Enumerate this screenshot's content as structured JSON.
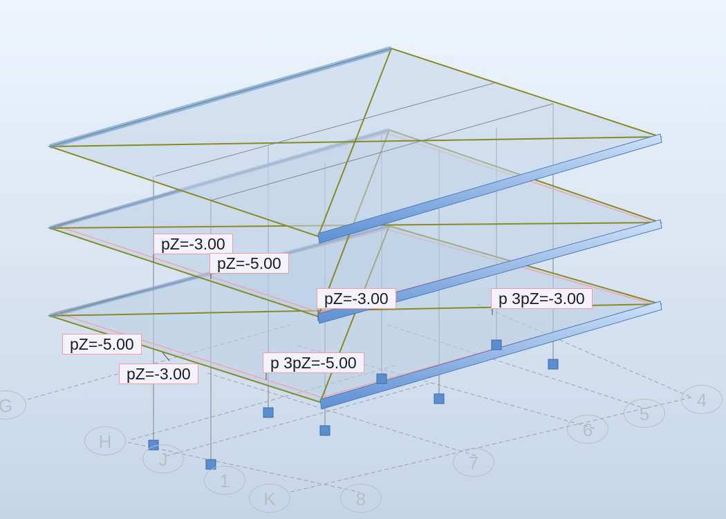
{
  "load_labels": [
    "pZ=-3.00",
    "pZ=-5.00",
    "pZ=-3.00",
    "p 3pZ=-3.00",
    "pZ=-5.00",
    "pZ=-3.00",
    "p 3pZ=-5.00"
  ],
  "grid_labels": [
    "G",
    "H",
    "J",
    "1",
    "K",
    "8",
    "7",
    "6",
    "5",
    "4"
  ],
  "colors": {
    "background_top": "#eef4fb",
    "background_bottom": "#c5d6e9",
    "slab_edge": "#8a8a22",
    "slab_fill": "#b9cde3",
    "beam": "#6f9fdc",
    "load_outline": "#ff9a9a",
    "support": "#5b8ecf",
    "gridline": "#9ea4ab"
  }
}
